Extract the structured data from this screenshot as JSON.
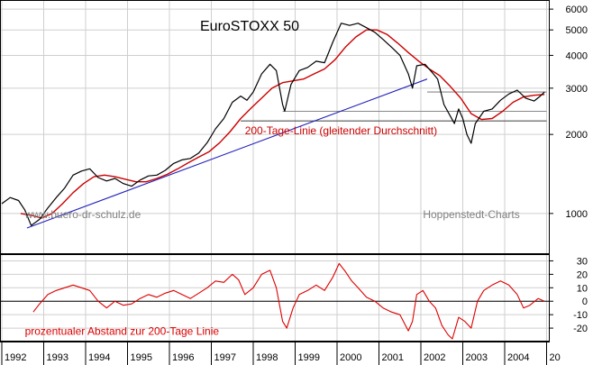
{
  "chart_data": [
    {
      "type": "line",
      "title": "EuroSTOXX 50",
      "scale": "log",
      "ylim": [
        700,
        6500
      ],
      "y_ticks": [
        1000,
        2000,
        3000,
        4000,
        5000,
        6000
      ],
      "y_tick_labels": [
        "1000",
        "2000",
        "3000",
        "4000",
        "5000",
        "6000"
      ],
      "x_range": [
        1992.0,
        2005.1
      ],
      "x_tick_labels": [
        "1992",
        "1993",
        "1994",
        "1995",
        "1996",
        "1997",
        "1998",
        "1999",
        "2000",
        "2001",
        "2002",
        "2003",
        "2004",
        "20"
      ],
      "grid": true,
      "series": [
        {
          "role": "price",
          "color": "#000000",
          "points": [
            [
              1992.0,
              1090
            ],
            [
              1992.2,
              1150
            ],
            [
              1992.4,
              1120
            ],
            [
              1992.55,
              1030
            ],
            [
              1992.7,
              900
            ],
            [
              1992.9,
              950
            ],
            [
              1993.1,
              1050
            ],
            [
              1993.3,
              1150
            ],
            [
              1993.5,
              1250
            ],
            [
              1993.7,
              1400
            ],
            [
              1993.9,
              1450
            ],
            [
              1994.1,
              1480
            ],
            [
              1994.3,
              1370
            ],
            [
              1994.5,
              1330
            ],
            [
              1994.7,
              1360
            ],
            [
              1994.9,
              1300
            ],
            [
              1995.1,
              1270
            ],
            [
              1995.3,
              1340
            ],
            [
              1995.5,
              1390
            ],
            [
              1995.7,
              1400
            ],
            [
              1995.9,
              1460
            ],
            [
              1996.1,
              1550
            ],
            [
              1996.3,
              1600
            ],
            [
              1996.5,
              1620
            ],
            [
              1996.7,
              1700
            ],
            [
              1996.9,
              1860
            ],
            [
              1997.1,
              2100
            ],
            [
              1997.3,
              2300
            ],
            [
              1997.5,
              2650
            ],
            [
              1997.7,
              2800
            ],
            [
              1997.85,
              2700
            ],
            [
              1998.0,
              2900
            ],
            [
              1998.2,
              3400
            ],
            [
              1998.4,
              3700
            ],
            [
              1998.55,
              3500
            ],
            [
              1998.7,
              2600
            ],
            [
              1998.75,
              2450
            ],
            [
              1998.9,
              3100
            ],
            [
              1999.1,
              3500
            ],
            [
              1999.3,
              3600
            ],
            [
              1999.5,
              3800
            ],
            [
              1999.7,
              3750
            ],
            [
              1999.9,
              4500
            ],
            [
              2000.1,
              5300
            ],
            [
              2000.3,
              5200
            ],
            [
              2000.5,
              5300
            ],
            [
              2000.7,
              5100
            ],
            [
              2000.9,
              4900
            ],
            [
              2001.1,
              4600
            ],
            [
              2001.3,
              4300
            ],
            [
              2001.5,
              4000
            ],
            [
              2001.7,
              3400
            ],
            [
              2001.8,
              3000
            ],
            [
              2001.9,
              3650
            ],
            [
              2002.1,
              3700
            ],
            [
              2002.3,
              3400
            ],
            [
              2002.4,
              3250
            ],
            [
              2002.55,
              2600
            ],
            [
              2002.7,
              2350
            ],
            [
              2002.8,
              2200
            ],
            [
              2002.9,
              2500
            ],
            [
              2003.0,
              2300
            ],
            [
              2003.1,
              2000
            ],
            [
              2003.2,
              1850
            ],
            [
              2003.3,
              2200
            ],
            [
              2003.5,
              2450
            ],
            [
              2003.7,
              2500
            ],
            [
              2003.9,
              2700
            ],
            [
              2004.1,
              2850
            ],
            [
              2004.3,
              2950
            ],
            [
              2004.5,
              2750
            ],
            [
              2004.7,
              2680
            ],
            [
              2004.85,
              2800
            ],
            [
              2004.95,
              2900
            ]
          ]
        },
        {
          "role": "sma200",
          "name": "200-Tage-Linie (gleitender Durchschnitt)",
          "color": "#cc0000",
          "points": [
            [
              1992.45,
              1000
            ],
            [
              1992.7,
              985
            ],
            [
              1992.95,
              960
            ],
            [
              1993.2,
              1000
            ],
            [
              1993.45,
              1090
            ],
            [
              1993.7,
              1200
            ],
            [
              1993.95,
              1300
            ],
            [
              1994.2,
              1380
            ],
            [
              1994.45,
              1400
            ],
            [
              1994.7,
              1380
            ],
            [
              1994.95,
              1350
            ],
            [
              1995.2,
              1320
            ],
            [
              1995.45,
              1320
            ],
            [
              1995.7,
              1360
            ],
            [
              1995.95,
              1410
            ],
            [
              1996.2,
              1480
            ],
            [
              1996.45,
              1560
            ],
            [
              1996.7,
              1640
            ],
            [
              1996.95,
              1720
            ],
            [
              1997.2,
              1860
            ],
            [
              1997.45,
              2050
            ],
            [
              1997.7,
              2300
            ],
            [
              1997.95,
              2520
            ],
            [
              1998.2,
              2750
            ],
            [
              1998.45,
              3000
            ],
            [
              1998.7,
              3150
            ],
            [
              1998.95,
              3200
            ],
            [
              1999.2,
              3250
            ],
            [
              1999.45,
              3400
            ],
            [
              1999.7,
              3550
            ],
            [
              1999.95,
              3850
            ],
            [
              2000.2,
              4300
            ],
            [
              2000.45,
              4700
            ],
            [
              2000.7,
              5000
            ],
            [
              2000.95,
              5000
            ],
            [
              2001.2,
              4800
            ],
            [
              2001.45,
              4450
            ],
            [
              2001.7,
              4100
            ],
            [
              2001.95,
              3800
            ],
            [
              2002.2,
              3550
            ],
            [
              2002.45,
              3350
            ],
            [
              2002.7,
              3050
            ],
            [
              2002.95,
              2750
            ],
            [
              2003.2,
              2400
            ],
            [
              2003.45,
              2280
            ],
            [
              2003.7,
              2300
            ],
            [
              2003.95,
              2450
            ],
            [
              2004.2,
              2650
            ],
            [
              2004.45,
              2780
            ],
            [
              2004.7,
              2820
            ],
            [
              2004.95,
              2840
            ]
          ]
        },
        {
          "role": "trendline",
          "color": "#2222bb",
          "points": [
            [
              1992.6,
              880
            ],
            [
              2002.15,
              3250
            ]
          ]
        },
        {
          "role": "horizontal",
          "color": "#888888",
          "points": [
            [
              2002.15,
              2900
            ],
            [
              2005.0,
              2900
            ]
          ]
        },
        {
          "role": "horizontal",
          "color": "#888888",
          "points": [
            [
              1998.7,
              2450
            ],
            [
              2005.0,
              2450
            ]
          ]
        },
        {
          "role": "horizontal",
          "color": "#555555",
          "points": [
            [
              1997.7,
              2250
            ],
            [
              2005.0,
              2250
            ]
          ]
        }
      ],
      "annotations": [
        {
          "text": "200-Tage-Linie (gleitender Durchschnitt)",
          "color": "#cc0000",
          "x": 1997.8,
          "y": 2000
        },
        {
          "text": "www.buero-dr-schulz.de",
          "color": "#808080",
          "x": 1992.55,
          "y": 960
        },
        {
          "text": "Hoppenstedt-Charts",
          "color": "#808080",
          "x": 2002.05,
          "y": 960
        }
      ]
    },
    {
      "type": "line",
      "title": "",
      "ylim": [
        -30,
        35
      ],
      "y_ticks": [
        -20,
        -10,
        0,
        10,
        20,
        30
      ],
      "y_tick_labels": [
        "-20",
        "-10",
        "0",
        "10",
        "20",
        "30"
      ],
      "zero_line": true,
      "series": [
        {
          "role": "deviation",
          "name": "prozentualer Abstand zur 200-Tage Linie",
          "color": "#dd0000",
          "points": [
            [
              1992.75,
              -8
            ],
            [
              1992.9,
              -2
            ],
            [
              1993.1,
              5
            ],
            [
              1993.3,
              8
            ],
            [
              1993.5,
              10
            ],
            [
              1993.7,
              12
            ],
            [
              1993.9,
              10
            ],
            [
              1994.1,
              8
            ],
            [
              1994.3,
              0
            ],
            [
              1994.5,
              -5
            ],
            [
              1994.7,
              0
            ],
            [
              1994.9,
              -3
            ],
            [
              1995.1,
              -2
            ],
            [
              1995.3,
              2
            ],
            [
              1995.5,
              5
            ],
            [
              1995.7,
              3
            ],
            [
              1995.9,
              6
            ],
            [
              1996.1,
              8
            ],
            [
              1996.3,
              5
            ],
            [
              1996.5,
              2
            ],
            [
              1996.7,
              6
            ],
            [
              1996.9,
              10
            ],
            [
              1997.1,
              15
            ],
            [
              1997.3,
              14
            ],
            [
              1997.5,
              20
            ],
            [
              1997.65,
              16
            ],
            [
              1997.8,
              5
            ],
            [
              1998.0,
              10
            ],
            [
              1998.2,
              20
            ],
            [
              1998.4,
              23
            ],
            [
              1998.55,
              10
            ],
            [
              1998.7,
              -15
            ],
            [
              1998.8,
              -20
            ],
            [
              1998.95,
              -5
            ],
            [
              1999.1,
              5
            ],
            [
              1999.3,
              8
            ],
            [
              1999.5,
              12
            ],
            [
              1999.7,
              8
            ],
            [
              1999.9,
              18
            ],
            [
              2000.05,
              28
            ],
            [
              2000.2,
              22
            ],
            [
              2000.35,
              15
            ],
            [
              2000.5,
              10
            ],
            [
              2000.7,
              3
            ],
            [
              2000.9,
              0
            ],
            [
              2001.1,
              -5
            ],
            [
              2001.3,
              -8
            ],
            [
              2001.5,
              -10
            ],
            [
              2001.7,
              -22
            ],
            [
              2001.8,
              -15
            ],
            [
              2001.9,
              5
            ],
            [
              2002.05,
              8
            ],
            [
              2002.2,
              0
            ],
            [
              2002.35,
              -5
            ],
            [
              2002.5,
              -18
            ],
            [
              2002.65,
              -25
            ],
            [
              2002.75,
              -28
            ],
            [
              2002.9,
              -12
            ],
            [
              2003.05,
              -15
            ],
            [
              2003.2,
              -20
            ],
            [
              2003.35,
              0
            ],
            [
              2003.5,
              8
            ],
            [
              2003.7,
              12
            ],
            [
              2003.9,
              15
            ],
            [
              2004.1,
              12
            ],
            [
              2004.3,
              5
            ],
            [
              2004.45,
              -5
            ],
            [
              2004.6,
              -3
            ],
            [
              2004.8,
              2
            ],
            [
              2004.95,
              0
            ]
          ]
        }
      ],
      "annotations": [
        {
          "text": "prozentualer Abstand zur 200-Tage Linie",
          "color": "#dd0000",
          "x": 1992.55,
          "y": -25
        }
      ]
    }
  ]
}
